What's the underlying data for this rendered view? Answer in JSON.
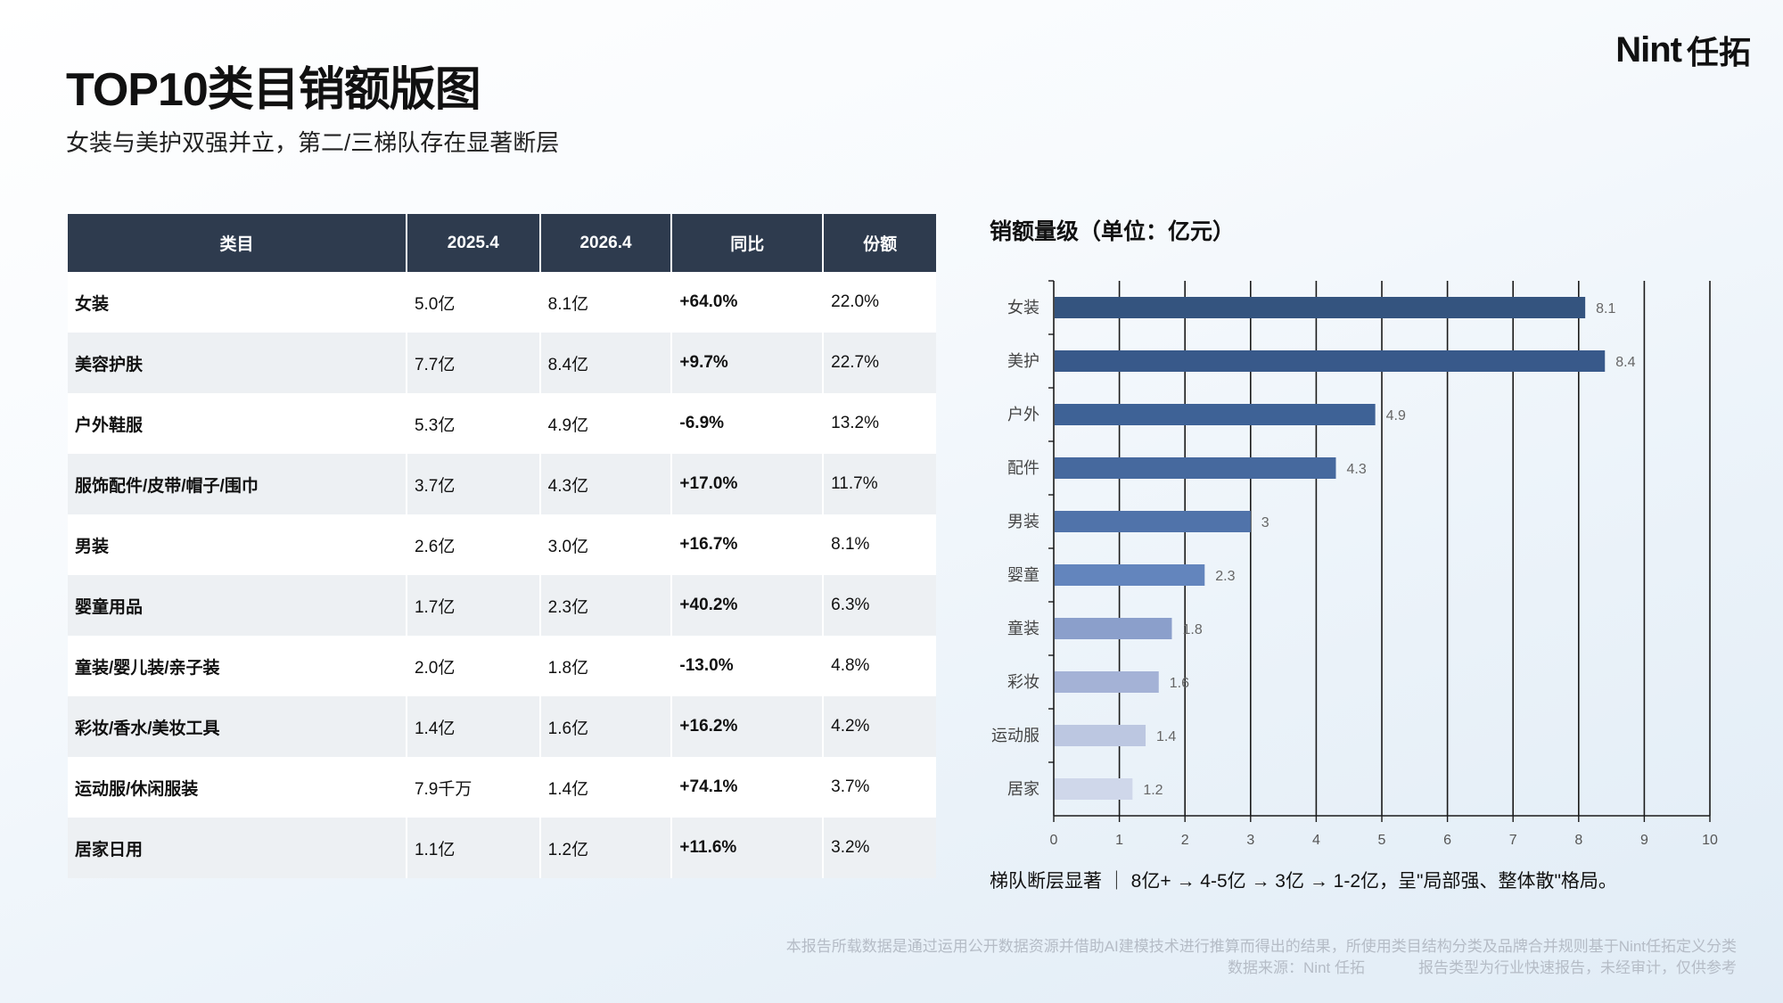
{
  "header": {
    "title": "TOP10类目销额版图",
    "subtitle": "女装与美护双强并立，第二/三梯队存在显著断层",
    "logo_mark": "Nint",
    "logo_text": "任拓"
  },
  "table": {
    "columns": [
      "类目",
      "2025.4",
      "2026.4",
      "同比",
      "份额"
    ],
    "rows": [
      {
        "category": "女装",
        "y2025": "5.0亿",
        "y2026": "8.1亿",
        "yoy": "+64.0%",
        "share": "22.0%"
      },
      {
        "category": "美容护肤",
        "y2025": "7.7亿",
        "y2026": "8.4亿",
        "yoy": "+9.7%",
        "share": "22.7%"
      },
      {
        "category": "户外鞋服",
        "y2025": "5.3亿",
        "y2026": "4.9亿",
        "yoy": "-6.9%",
        "share": "13.2%"
      },
      {
        "category": "服饰配件/皮带/帽子/围巾",
        "y2025": "3.7亿",
        "y2026": "4.3亿",
        "yoy": "+17.0%",
        "share": "11.7%"
      },
      {
        "category": "男装",
        "y2025": "2.6亿",
        "y2026": "3.0亿",
        "yoy": "+16.7%",
        "share": "8.1%"
      },
      {
        "category": "婴童用品",
        "y2025": "1.7亿",
        "y2026": "2.3亿",
        "yoy": "+40.2%",
        "share": "6.3%"
      },
      {
        "category": "童装/婴儿装/亲子装",
        "y2025": "2.0亿",
        "y2026": "1.8亿",
        "yoy": "-13.0%",
        "share": "4.8%"
      },
      {
        "category": "彩妆/香水/美妆工具",
        "y2025": "1.4亿",
        "y2026": "1.6亿",
        "yoy": "+16.2%",
        "share": "4.2%"
      },
      {
        "category": "运动服/休闲服装",
        "y2025": "7.9千万",
        "y2026": "1.4亿",
        "yoy": "+74.1%",
        "share": "3.7%"
      },
      {
        "category": "居家日用",
        "y2025": "1.1亿",
        "y2026": "1.2亿",
        "yoy": "+11.6%",
        "share": "3.2%"
      }
    ]
  },
  "chart_data": {
    "type": "bar",
    "orientation": "horizontal",
    "title": "销额量级（单位：亿元）",
    "categories": [
      "女装",
      "美护",
      "户外",
      "配件",
      "男装",
      "婴童",
      "童装",
      "彩妆",
      "运动服",
      "居家"
    ],
    "values": [
      8.1,
      8.4,
      4.9,
      4.3,
      3,
      2.3,
      1.8,
      1.6,
      1.4,
      1.2
    ],
    "value_labels": [
      "8.1",
      "8.4",
      "4.9",
      "4.3",
      "3",
      "2.3",
      "1.8",
      "1.6",
      "1.4",
      "1.2"
    ],
    "xlim": [
      0,
      10
    ],
    "xticks": [
      0,
      1,
      2,
      3,
      4,
      5,
      6,
      7,
      8,
      9,
      10
    ],
    "grid": true,
    "bar_colors": [
      "#34547f",
      "#38598a",
      "#3e6296",
      "#46699e",
      "#5073aa",
      "#6385bd",
      "#8b9fcb",
      "#a4b2d6",
      "#bcc7e1",
      "#cfd7ea"
    ],
    "xlabel": "",
    "ylabel": ""
  },
  "chart_note": "梯队断层显著 ｜ 8亿+ → 4-5亿 → 3亿 → 1-2亿，呈\"局部强、整体散\"格局。",
  "footer": {
    "disclaimer": "本报告所载数据是通过运用公开数据资源并借助AI建模技术进行推算而得出的结果，所使用类目结构分类及品牌合并规则基于Nint任拓定义分类",
    "source": "数据来源：Nint 任拓",
    "report_type": "报告类型为行业快速报告，未经审计，仅供参考"
  }
}
